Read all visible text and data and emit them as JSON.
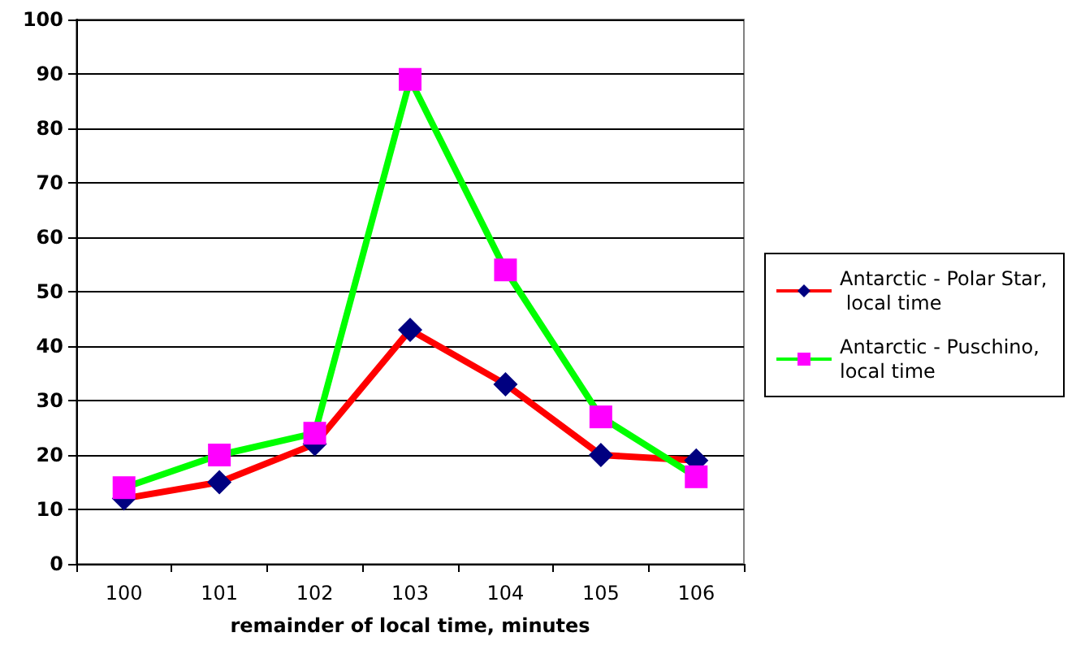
{
  "chart_data": {
    "type": "line",
    "xlabel": "remainder of local time, minutes",
    "categories": [
      "100",
      "101",
      "102",
      "103",
      "104",
      "105",
      "106"
    ],
    "series": [
      {
        "name": "Antarctic - Polar Star, local time",
        "color": "#ff0000",
        "marker": "diamond",
        "colors": [
          "#000080",
          "#000080",
          "#000080",
          "#000080",
          "#000080",
          "#000080",
          "#000080"
        ],
        "values": [
          12,
          15,
          22,
          43,
          33,
          20,
          19
        ]
      },
      {
        "name": "Antarctic - Puschino, local time",
        "color": "#00ff00",
        "marker": "square",
        "colors": [
          "#ff00ff",
          "#ff00ff",
          "#ff00ff",
          "#ff00ff",
          "#ff00ff",
          "#ff00ff",
          "#ff00ff"
        ],
        "values": [
          14,
          20,
          24,
          89,
          54,
          27,
          16
        ]
      }
    ],
    "ylim": [
      0,
      100
    ],
    "yticks": [
      0,
      10,
      20,
      30,
      40,
      50,
      60,
      70,
      80,
      90,
      100
    ],
    "grid": "y",
    "legend": "right",
    "line_style": "solid"
  }
}
